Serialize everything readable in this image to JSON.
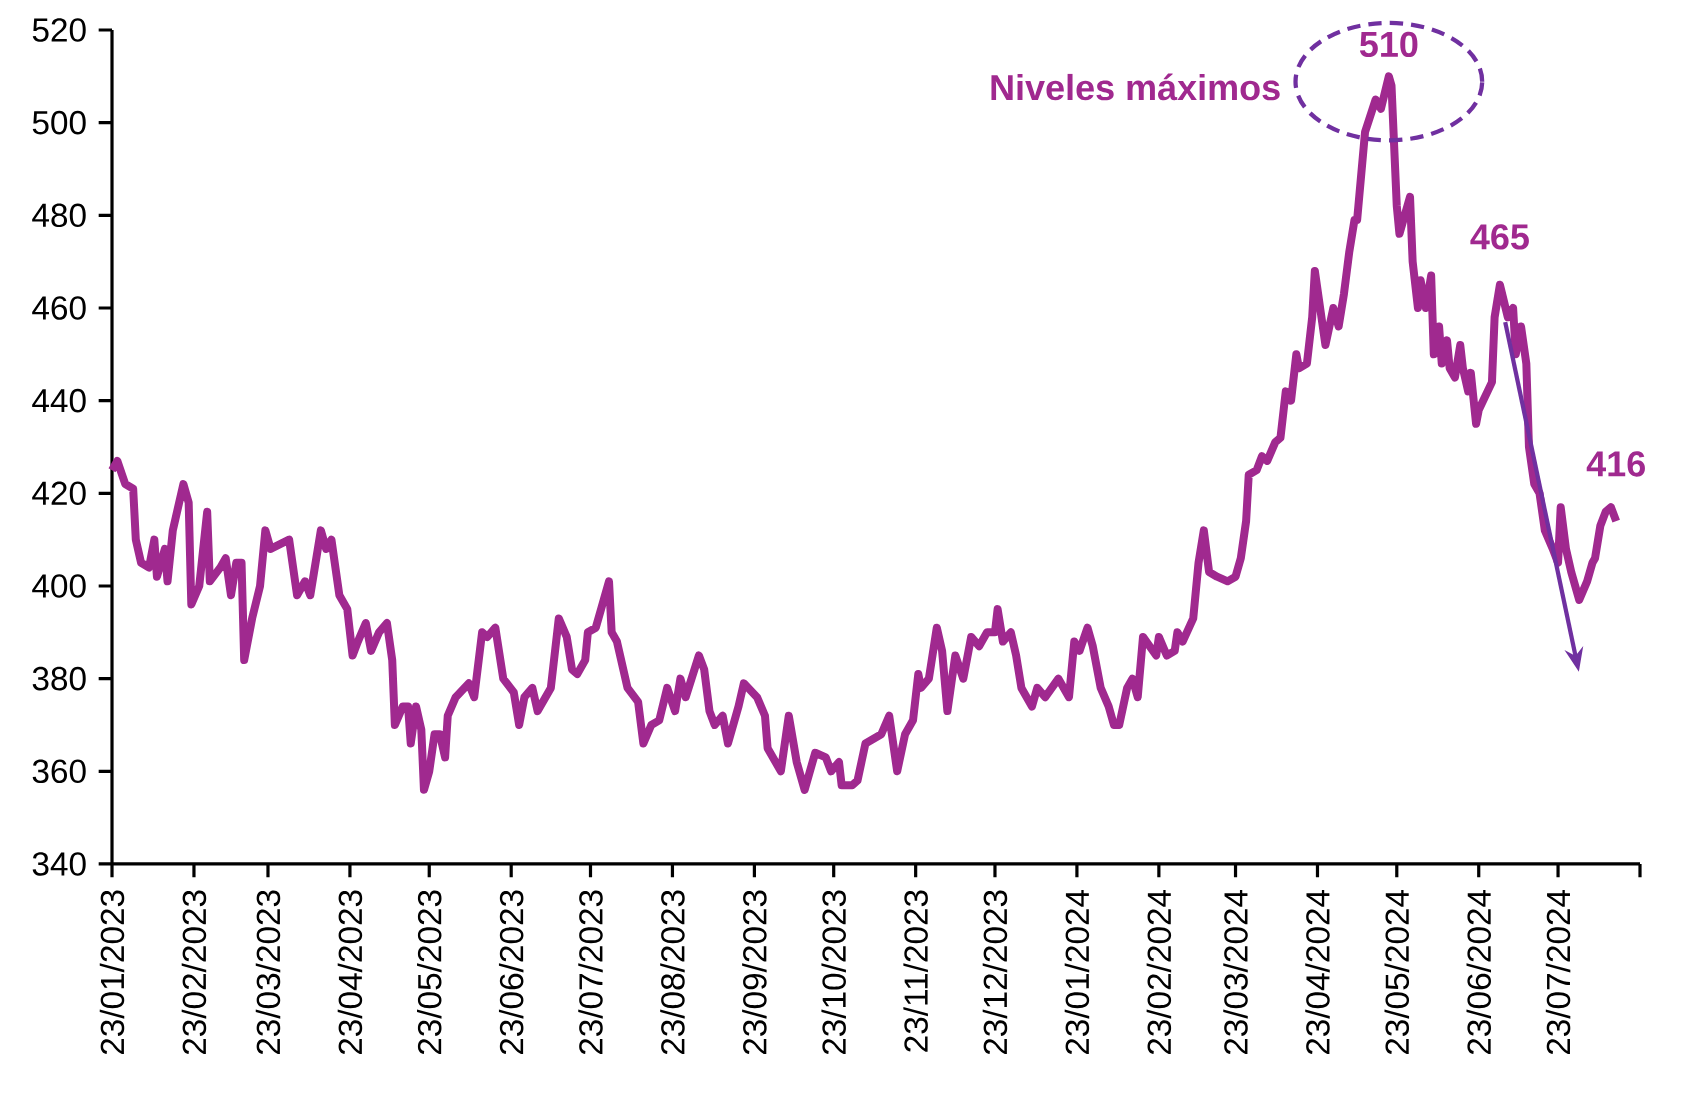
{
  "chart_data": {
    "type": "line",
    "x": [
      "2023-01-23",
      "2023-01-25",
      "2023-01-28",
      "2023-01-31",
      "2023-02-01",
      "2023-02-03",
      "2023-02-06",
      "2023-02-08",
      "2023-02-09",
      "2023-02-12",
      "2023-02-13",
      "2023-02-15",
      "2023-02-19",
      "2023-02-21",
      "2023-02-22",
      "2023-02-25",
      "2023-02-28",
      "2023-03-01",
      "2023-03-05",
      "2023-03-07",
      "2023-03-09",
      "2023-03-11",
      "2023-03-13",
      "2023-03-14",
      "2023-03-17",
      "2023-03-20",
      "2023-03-22",
      "2023-03-24",
      "2023-03-31",
      "2023-04-03",
      "2023-04-06",
      "2023-04-08",
      "2023-04-12",
      "2023-04-14",
      "2023-04-16",
      "2023-04-19",
      "2023-04-22",
      "2023-04-24",
      "2023-04-26",
      "2023-04-29",
      "2023-05-01",
      "2023-05-04",
      "2023-05-07",
      "2023-05-09",
      "2023-05-10",
      "2023-05-13",
      "2023-05-15",
      "2023-05-16",
      "2023-05-18",
      "2023-05-20",
      "2023-05-21",
      "2023-05-23",
      "2023-05-25",
      "2023-05-27",
      "2023-05-29",
      "2023-05-30",
      "2023-06-02",
      "2023-06-07",
      "2023-06-09",
      "2023-06-12",
      "2023-06-14",
      "2023-06-17",
      "2023-06-20",
      "2023-06-24",
      "2023-06-26",
      "2023-06-28",
      "2023-07-01",
      "2023-07-03",
      "2023-07-08",
      "2023-07-11",
      "2023-07-14",
      "2023-07-16",
      "2023-07-18",
      "2023-07-21",
      "2023-07-22",
      "2023-07-25",
      "2023-07-27",
      "2023-07-30",
      "2023-07-31",
      "2023-08-02",
      "2023-08-06",
      "2023-08-10",
      "2023-08-12",
      "2023-08-15",
      "2023-08-18",
      "2023-08-21",
      "2023-08-24",
      "2023-08-26",
      "2023-08-28",
      "2023-09-02",
      "2023-09-04",
      "2023-09-06",
      "2023-09-08",
      "2023-09-11",
      "2023-09-13",
      "2023-09-17",
      "2023-09-19",
      "2023-09-24",
      "2023-09-27",
      "2023-09-28",
      "2023-10-03",
      "2023-10-05",
      "2023-10-06",
      "2023-10-09",
      "2023-10-12",
      "2023-10-16",
      "2023-10-20",
      "2023-10-22",
      "2023-10-25",
      "2023-10-26",
      "2023-10-30",
      "2023-11-01",
      "2023-11-04",
      "2023-11-10",
      "2023-11-13",
      "2023-11-16",
      "2023-11-19",
      "2023-11-22",
      "2023-11-24",
      "2023-11-25",
      "2023-11-28",
      "2023-12-01",
      "2023-12-03",
      "2023-12-05",
      "2023-12-08",
      "2023-12-11",
      "2023-12-14",
      "2023-12-17",
      "2023-12-20",
      "2023-12-23",
      "2023-12-24",
      "2023-12-26",
      "2023-12-29",
      "2023-12-31",
      "2024-01-02",
      "2024-01-06",
      "2024-01-08",
      "2024-01-11",
      "2024-01-16",
      "2024-01-20",
      "2024-01-22",
      "2024-01-24",
      "2024-01-27",
      "2024-01-29",
      "2024-02-01",
      "2024-02-04",
      "2024-02-06",
      "2024-02-08",
      "2024-02-11",
      "2024-02-13",
      "2024-02-15",
      "2024-02-17",
      "2024-02-22",
      "2024-02-23",
      "2024-02-26",
      "2024-02-29",
      "2024-03-01",
      "2024-03-03",
      "2024-03-07",
      "2024-03-09",
      "2024-03-11",
      "2024-03-13",
      "2024-03-16",
      "2024-03-20",
      "2024-03-23",
      "2024-03-25",
      "2024-03-27",
      "2024-03-28",
      "2024-03-31",
      "2024-04-02",
      "2024-04-04",
      "2024-04-07",
      "2024-04-09",
      "2024-04-11",
      "2024-04-13",
      "2024-04-15",
      "2024-04-16",
      "2024-04-19",
      "2024-04-21",
      "2024-04-22",
      "2024-04-25",
      "2024-04-26",
      "2024-04-29",
      "2024-05-01",
      "2024-05-03",
      "2024-05-05",
      "2024-05-07",
      "2024-05-08",
      "2024-05-11",
      "2024-05-15",
      "2024-05-17",
      "2024-05-20",
      "2024-05-21",
      "2024-05-23",
      "2024-05-24",
      "2024-05-26",
      "2024-05-28",
      "2024-05-29",
      "2024-05-31",
      "2024-06-01",
      "2024-06-03",
      "2024-06-05",
      "2024-06-06",
      "2024-06-08",
      "2024-06-09",
      "2024-06-11",
      "2024-06-12",
      "2024-06-14",
      "2024-06-16",
      "2024-06-17",
      "2024-06-19",
      "2024-06-20",
      "2024-06-22",
      "2024-06-23",
      "2024-06-28",
      "2024-06-29",
      "2024-07-01",
      "2024-07-04",
      "2024-07-06",
      "2024-07-07",
      "2024-07-09",
      "2024-07-11",
      "2024-07-12",
      "2024-07-14",
      "2024-07-16",
      "2024-07-18",
      "2024-07-21",
      "2024-07-23",
      "2024-07-24",
      "2024-07-26",
      "2024-07-28",
      "2024-07-31",
      "2024-08-03",
      "2024-08-05",
      "2024-08-06",
      "2024-08-08",
      "2024-08-10",
      "2024-08-12",
      "2024-08-14"
    ],
    "series": [
      {
        "color": "#a0298f",
        "values": [
          425,
          427,
          422,
          421,
          410,
          405,
          404,
          410,
          402,
          408,
          401,
          412,
          422,
          418,
          396,
          400,
          416,
          401,
          404,
          406,
          398,
          405,
          405,
          384,
          393,
          400,
          412,
          408,
          410,
          398,
          401,
          398,
          412,
          408,
          410,
          398,
          395,
          385,
          388,
          392,
          386,
          390,
          392,
          384,
          370,
          374,
          374,
          366,
          374,
          369,
          356,
          360,
          368,
          368,
          363,
          372,
          376,
          379,
          376,
          390,
          389,
          391,
          380,
          377,
          370,
          376,
          378,
          373,
          378,
          393,
          389,
          382,
          381,
          384,
          390,
          391,
          395,
          401,
          390,
          388,
          378,
          375,
          366,
          370,
          371,
          378,
          373,
          380,
          376,
          385,
          382,
          373,
          370,
          372,
          366,
          374,
          379,
          376,
          372,
          365,
          360,
          368,
          372,
          362,
          356,
          364,
          363,
          360,
          362,
          357,
          357,
          358,
          366,
          368,
          372,
          360,
          368,
          371,
          381,
          378,
          380,
          391,
          386,
          373,
          385,
          380,
          389,
          387,
          390,
          390,
          395,
          388,
          390,
          385,
          378,
          374,
          378,
          376,
          380,
          376,
          388,
          386,
          391,
          387,
          378,
          374,
          370,
          370,
          378,
          380,
          376,
          389,
          385,
          389,
          385,
          386,
          390,
          388,
          393,
          405,
          412,
          403,
          402,
          401,
          402,
          406,
          414,
          424,
          425,
          428,
          427,
          431,
          432,
          442,
          440,
          450,
          447,
          448,
          458,
          468,
          456,
          452,
          460,
          456,
          463,
          472,
          479,
          479,
          498,
          505,
          503,
          510,
          508,
          482,
          476,
          480,
          484,
          470,
          460,
          466,
          460,
          467,
          450,
          456,
          448,
          453,
          447,
          445,
          452,
          447,
          442,
          446,
          435,
          438,
          444,
          458,
          465,
          458,
          460,
          450,
          456,
          448,
          430,
          422,
          420,
          412,
          408,
          405,
          417,
          408,
          403,
          397,
          401,
          405,
          406,
          413,
          416,
          417,
          414
        ]
      }
    ],
    "xlim": [
      "2023-01-23",
      "2024-08-23"
    ],
    "xticks": [
      {
        "value": "2023-01-23",
        "label": "23/01/2023"
      },
      {
        "value": "2023-02-23",
        "label": "23/02/2023"
      },
      {
        "value": "2023-03-23",
        "label": "23/03/2023"
      },
      {
        "value": "2023-04-23",
        "label": "23/04/2023"
      },
      {
        "value": "2023-05-23",
        "label": "23/05/2023"
      },
      {
        "value": "2023-06-23",
        "label": "23/06/2023"
      },
      {
        "value": "2023-07-23",
        "label": "23/07/2023"
      },
      {
        "value": "2023-08-23",
        "label": "23/08/2023"
      },
      {
        "value": "2023-09-23",
        "label": "23/09/2023"
      },
      {
        "value": "2023-10-23",
        "label": "23/10/2023"
      },
      {
        "value": "2023-11-23",
        "label": "23/11/2023"
      },
      {
        "value": "2023-12-23",
        "label": "23/12/2023"
      },
      {
        "value": "2024-01-23",
        "label": "23/01/2024"
      },
      {
        "value": "2024-02-23",
        "label": "23/02/2024"
      },
      {
        "value": "2024-03-23",
        "label": "23/03/2024"
      },
      {
        "value": "2024-04-23",
        "label": "23/04/2024"
      },
      {
        "value": "2024-05-23",
        "label": "23/05/2024"
      },
      {
        "value": "2024-06-23",
        "label": "23/06/2024"
      },
      {
        "value": "2024-07-23",
        "label": "23/07/2024"
      },
      {
        "value": "2024-08-23",
        "label": null
      }
    ],
    "ylim": [
      340,
      520
    ],
    "yticks": [
      340,
      360,
      380,
      400,
      420,
      440,
      460,
      480,
      500,
      520
    ],
    "annotations": [
      "Niveles máximos",
      {
        "text": "510",
        "x": "2024-05-20",
        "y": 510
      },
      {
        "text": "465",
        "x": "2024-07-01",
        "y": 465
      },
      {
        "text": "416",
        "x": "2024-08-14",
        "y": 416
      }
    ]
  }
}
